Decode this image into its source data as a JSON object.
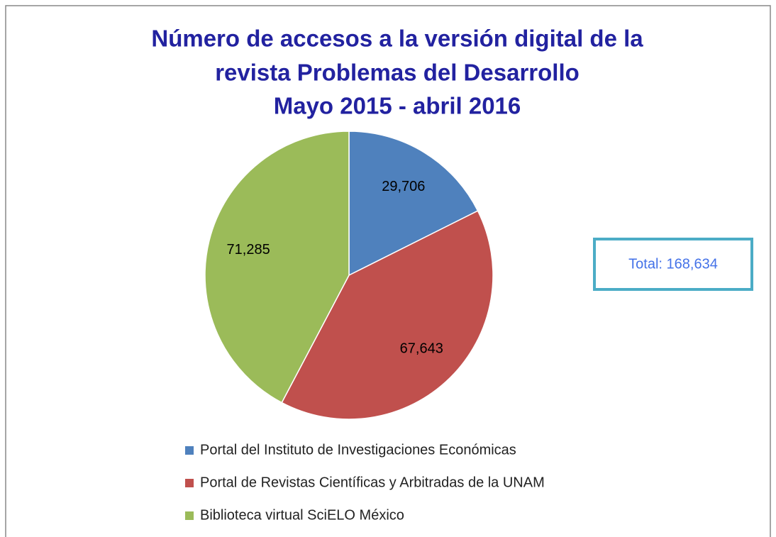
{
  "chart_data": {
    "type": "pie",
    "title": [
      "Número de accesos a la versión digital de la",
      "revista Problemas del Desarrollo",
      "Mayo 2015 - abril 2016"
    ],
    "categories": [
      "Portal del Instituto de Investigaciones Económicas",
      "Portal de Revistas Científicas y Arbitradas de la UNAM",
      "Biblioteca virtual SciELO México"
    ],
    "values": [
      29706,
      67643,
      71285
    ],
    "value_labels": [
      "29,706",
      "67,643",
      "71,285"
    ],
    "colors": [
      "#4f81bd",
      "#c0504d",
      "#9bbb59"
    ],
    "annotation": "Total: 168,634",
    "legend": "bottom"
  }
}
